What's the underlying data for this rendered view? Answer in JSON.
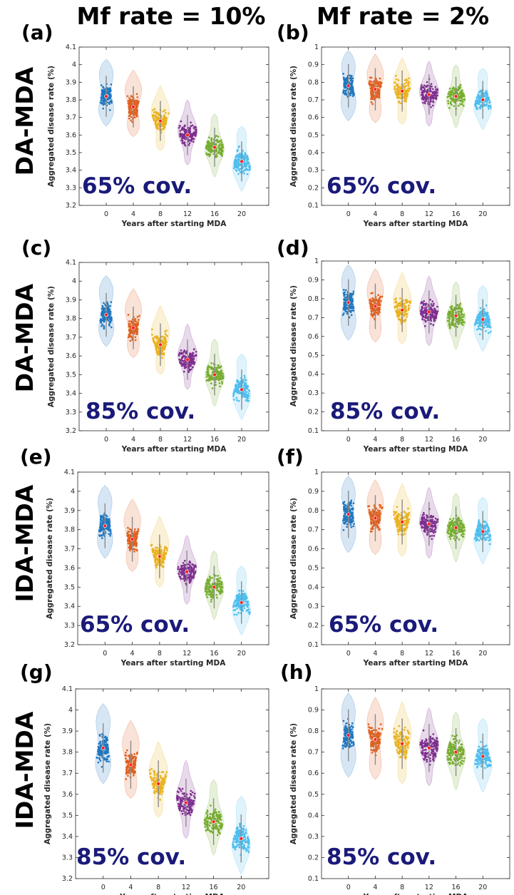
{
  "column_titles": [
    "Mf rate = 10%",
    "Mf rate = 2%"
  ],
  "row_titles": [
    "DA-MDA",
    "DA-MDA",
    "IDA-MDA",
    "IDA-MDA"
  ],
  "series_colors": [
    "#1f77c0",
    "#e0611f",
    "#eab21f",
    "#7e2f8e",
    "#77ac30",
    "#4dbeee"
  ],
  "chart_data": [
    {
      "type": "scatter",
      "panel_label": "(a)",
      "annotation": "65% cov.",
      "xlabel": "Years after starting MDA",
      "ylabel": "Aggregated disease rate (%)",
      "categories": [
        "0",
        "4",
        "8",
        "12",
        "16",
        "20"
      ],
      "ylim": [
        3.2,
        4.1
      ],
      "yticks": [
        "3.2",
        "3.3",
        "3.4",
        "3.5",
        "3.6",
        "3.7",
        "3.8",
        "3.9",
        "4",
        "4.1"
      ],
      "series": [
        {
          "values": [
            3.82,
            3.76,
            3.68,
            3.6,
            3.53,
            3.45
          ],
          "min": [
            3.65,
            3.59,
            3.51,
            3.43,
            3.36,
            3.28
          ],
          "max": [
            4.03,
            3.97,
            3.88,
            3.8,
            3.72,
            3.65
          ]
        }
      ]
    },
    {
      "type": "scatter",
      "panel_label": "(b)",
      "annotation": "65% cov.",
      "xlabel": "Years after starting MDA",
      "ylabel": "Aggregated disease rate (%)",
      "categories": [
        "0",
        "4",
        "8",
        "12",
        "16",
        "20"
      ],
      "ylim": [
        0.1,
        1
      ],
      "yticks": [
        "0.1",
        "0.2",
        "0.3",
        "0.4",
        "0.5",
        "0.6",
        "0.7",
        "0.8",
        "0.9",
        "1"
      ],
      "series": [
        {
          "values": [
            0.78,
            0.76,
            0.75,
            0.73,
            0.72,
            0.7
          ],
          "min": [
            0.58,
            0.57,
            0.56,
            0.55,
            0.54,
            0.53
          ],
          "max": [
            0.98,
            0.96,
            0.94,
            0.92,
            0.9,
            0.88
          ]
        }
      ]
    },
    {
      "type": "scatter",
      "panel_label": "(c)",
      "annotation": "85% cov.",
      "xlabel": "Years after starting MDA",
      "ylabel": "Aggregated disease rate (%)",
      "categories": [
        "0",
        "4",
        "8",
        "12",
        "16",
        "20"
      ],
      "ylim": [
        3.2,
        4.1
      ],
      "yticks": [
        "3.2",
        "3.3",
        "3.4",
        "3.5",
        "3.6",
        "3.7",
        "3.8",
        "3.9",
        "4",
        "4.1"
      ],
      "series": [
        {
          "values": [
            3.82,
            3.75,
            3.66,
            3.58,
            3.5,
            3.42
          ],
          "min": [
            3.65,
            3.59,
            3.5,
            3.42,
            3.33,
            3.26
          ],
          "max": [
            4.03,
            3.96,
            3.87,
            3.77,
            3.69,
            3.61
          ]
        }
      ]
    },
    {
      "type": "scatter",
      "panel_label": "(d)",
      "annotation": "85% cov.",
      "xlabel": "Years after starting MDA",
      "ylabel": "Aggregated disease rate (%)",
      "categories": [
        "0",
        "4",
        "8",
        "12",
        "16",
        "20"
      ],
      "ylim": [
        0.1,
        1
      ],
      "yticks": [
        "0.1",
        "0.2",
        "0.3",
        "0.4",
        "0.5",
        "0.6",
        "0.7",
        "0.8",
        "0.9",
        "1"
      ],
      "series": [
        {
          "values": [
            0.78,
            0.76,
            0.74,
            0.73,
            0.71,
            0.69
          ],
          "min": [
            0.58,
            0.57,
            0.56,
            0.55,
            0.53,
            0.52
          ],
          "max": [
            0.98,
            0.96,
            0.94,
            0.92,
            0.89,
            0.87
          ]
        }
      ]
    },
    {
      "type": "scatter",
      "panel_label": "(e)",
      "annotation": "65% cov.",
      "xlabel": "Years after starting MDA",
      "ylabel": "Aggregated disease rate (%)",
      "categories": [
        "0",
        "4",
        "8",
        "12",
        "16",
        "20"
      ],
      "ylim": [
        3.2,
        4.1
      ],
      "yticks": [
        "3.2",
        "3.3",
        "3.4",
        "3.5",
        "3.6",
        "3.7",
        "3.8",
        "3.9",
        "4",
        "4.1"
      ],
      "series": [
        {
          "values": [
            3.82,
            3.75,
            3.66,
            3.58,
            3.5,
            3.42
          ],
          "min": [
            3.65,
            3.58,
            3.5,
            3.41,
            3.33,
            3.25
          ],
          "max": [
            4.03,
            3.96,
            3.87,
            3.77,
            3.69,
            3.61
          ]
        }
      ]
    },
    {
      "type": "scatter",
      "panel_label": "(f)",
      "annotation": "65% cov.",
      "xlabel": "Years after starting MDA",
      "ylabel": "Aggregated disease rate (%)",
      "categories": [
        "0",
        "4",
        "8",
        "12",
        "16",
        "20"
      ],
      "ylim": [
        0.1,
        1
      ],
      "yticks": [
        "0.1",
        "0.2",
        "0.3",
        "0.4",
        "0.5",
        "0.6",
        "0.7",
        "0.8",
        "0.9",
        "1"
      ],
      "series": [
        {
          "values": [
            0.78,
            0.76,
            0.74,
            0.73,
            0.71,
            0.69
          ],
          "min": [
            0.58,
            0.57,
            0.56,
            0.55,
            0.53,
            0.52
          ],
          "max": [
            0.98,
            0.96,
            0.94,
            0.92,
            0.89,
            0.87
          ]
        }
      ]
    },
    {
      "type": "scatter",
      "panel_label": "(g)",
      "annotation": "85% cov.",
      "xlabel": "Years after starting MDA",
      "ylabel": "Aggregated disease rate (%)",
      "categories": [
        "0",
        "4",
        "8",
        "12",
        "16",
        "20"
      ],
      "ylim": [
        3.2,
        4.1
      ],
      "yticks": [
        "3.2",
        "3.3",
        "3.4",
        "3.5",
        "3.6",
        "3.7",
        "3.8",
        "3.9",
        "4",
        "4.1"
      ],
      "series": [
        {
          "values": [
            3.82,
            3.74,
            3.65,
            3.56,
            3.47,
            3.39
          ],
          "min": [
            3.65,
            3.58,
            3.49,
            3.39,
            3.31,
            3.22
          ],
          "max": [
            4.03,
            3.95,
            3.85,
            3.76,
            3.67,
            3.59
          ]
        }
      ]
    },
    {
      "type": "scatter",
      "panel_label": "(h)",
      "annotation": "85% cov.",
      "xlabel": "Years after starting MDA",
      "ylabel": "Aggregated disease rate (%)",
      "categories": [
        "0",
        "4",
        "8",
        "12",
        "16",
        "20"
      ],
      "ylim": [
        0.1,
        1
      ],
      "yticks": [
        "0.1",
        "0.2",
        "0.3",
        "0.4",
        "0.5",
        "0.6",
        "0.7",
        "0.8",
        "0.9",
        "1"
      ],
      "series": [
        {
          "values": [
            0.78,
            0.76,
            0.74,
            0.72,
            0.7,
            0.68
          ],
          "min": [
            0.58,
            0.57,
            0.55,
            0.54,
            0.52,
            0.51
          ],
          "max": [
            0.98,
            0.96,
            0.94,
            0.91,
            0.89,
            0.86
          ]
        }
      ]
    }
  ]
}
